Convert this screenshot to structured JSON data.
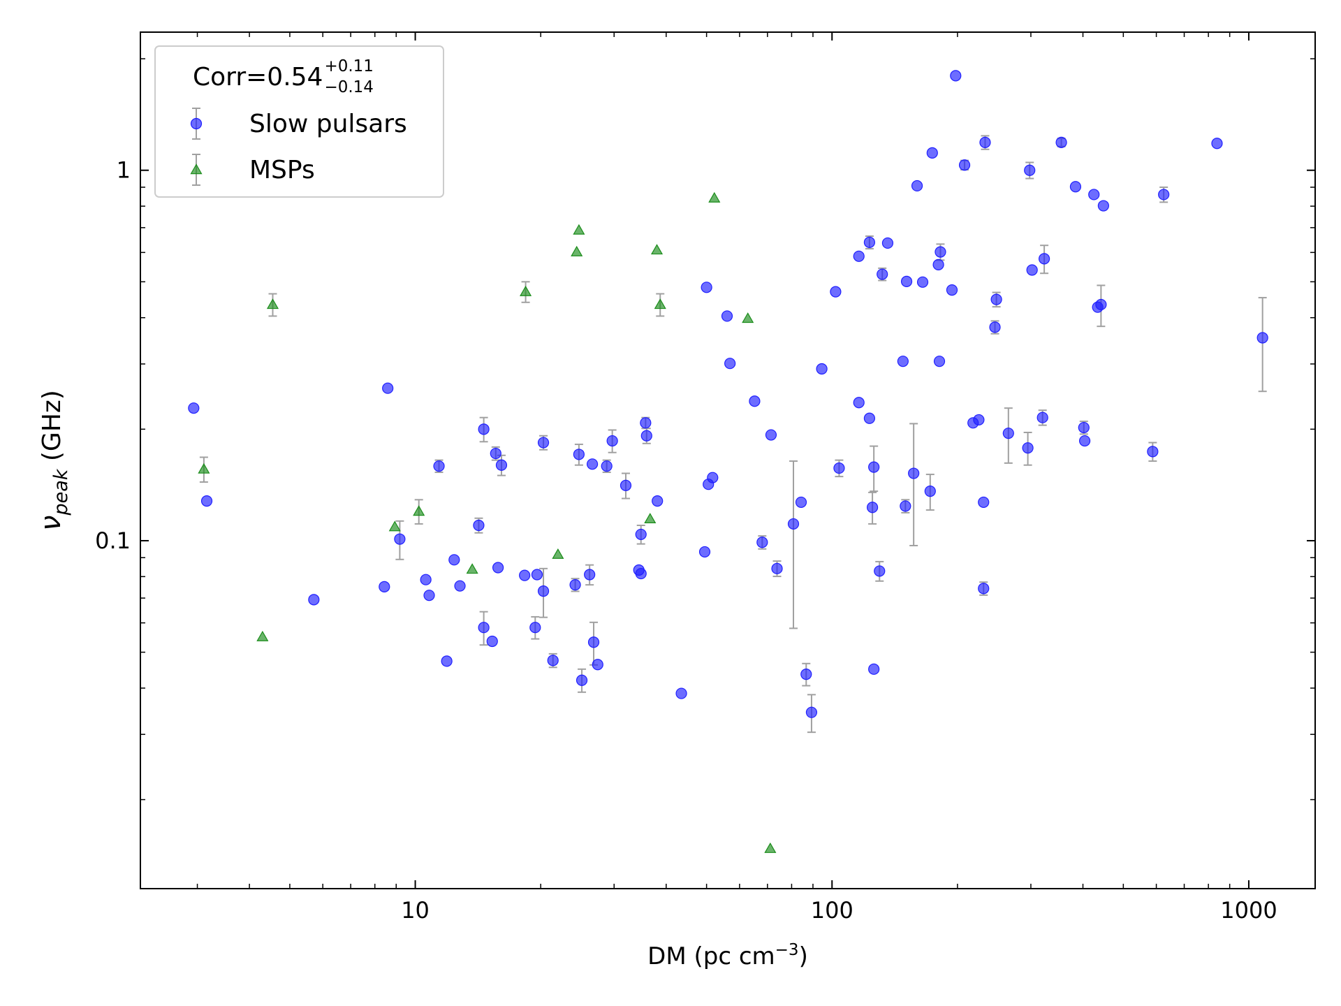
{
  "chart_data": {
    "type": "scatter",
    "legend_title": {
      "text": "Corr=0.54",
      "sup": "+0.11",
      "sub": "−0.14"
    },
    "x_label": {
      "text": "DM (pc cm",
      "sup": "−3",
      "end": ")"
    },
    "y_label": {
      "symbol": "ν",
      "sub": "peak",
      "unit": " (GHz)"
    },
    "xscale": "log",
    "yscale": "log",
    "xlim": [
      2.19,
      1443
    ],
    "ylim": [
      0.0115,
      2.36
    ],
    "xticks": [
      10,
      100,
      1000
    ],
    "yticks": [
      0.1,
      1
    ],
    "legend": "upper left",
    "series": [
      {
        "name": "Slow pulsars",
        "color": "#1f1fff",
        "marker": "circle",
        "x": [
          2.94,
          3.16,
          5.71,
          8.59,
          8.43,
          9.18,
          10.6,
          10.8,
          11.4,
          11.9,
          12.4,
          12.8,
          14.2,
          14.6,
          14.6,
          15.3,
          15.6,
          16.1,
          15.8,
          18.3,
          19.6,
          19.4,
          20.3,
          20.3,
          21.4,
          24.2,
          24.7,
          25.1,
          26.2,
          26.6,
          26.8,
          27.4,
          28.8,
          29.7,
          32.0,
          34.4,
          34.8,
          34.8,
          35.7,
          35.9,
          38.1,
          43.5,
          49.5,
          50.0,
          50.5,
          51.7,
          56.0,
          56.9,
          65.2,
          68.0,
          71.4,
          73.8,
          80.8,
          84.3,
          86.7,
          89.3,
          94.5,
          102,
          104,
          116,
          116,
          123,
          123,
          126,
          125,
          126,
          130,
          132,
          136,
          148,
          150,
          151,
          157,
          160,
          165,
          172,
          174,
          180,
          181,
          182,
          194,
          198,
          208,
          218,
          225,
          231,
          231,
          233,
          248,
          246,
          265,
          295,
          298,
          302,
          320,
          323,
          355,
          384,
          402,
          404,
          425,
          434,
          442,
          448,
          588,
          625,
          839,
          1079
        ],
        "values": [
          0.228,
          0.128,
          0.0693,
          0.258,
          0.0751,
          0.101,
          0.0785,
          0.0712,
          0.159,
          0.0473,
          0.0888,
          0.0755,
          0.11,
          0.2,
          0.0583,
          0.0535,
          0.172,
          0.16,
          0.0846,
          0.0806,
          0.081,
          0.0583,
          0.184,
          0.0731,
          0.0475,
          0.076,
          0.171,
          0.042,
          0.081,
          0.161,
          0.0532,
          0.0463,
          0.159,
          0.186,
          0.141,
          0.0833,
          0.0815,
          0.104,
          0.208,
          0.192,
          0.128,
          0.0387,
          0.0933,
          0.483,
          0.142,
          0.148,
          0.404,
          0.301,
          0.238,
          0.099,
          0.193,
          0.0841,
          0.111,
          0.127,
          0.0436,
          0.0344,
          0.291,
          0.47,
          0.157,
          0.586,
          0.236,
          0.639,
          0.214,
          0.158,
          0.123,
          0.045,
          0.0828,
          0.524,
          0.636,
          0.305,
          0.124,
          0.501,
          0.152,
          0.908,
          0.499,
          0.136,
          1.114,
          0.556,
          0.305,
          0.602,
          0.475,
          1.8,
          1.033,
          0.208,
          0.212,
          0.127,
          0.0743,
          1.189,
          0.448,
          0.377,
          0.195,
          0.178,
          1.0,
          0.538,
          0.215,
          0.577,
          1.189,
          0.903,
          0.202,
          0.186,
          0.86,
          0.427,
          0.434,
          0.802,
          0.174,
          0.86,
          1.182,
          0.353
        ],
        "errors": [
          null,
          null,
          null,
          null,
          null,
          0.012,
          null,
          null,
          0.006,
          null,
          null,
          null,
          0.005,
          0.015,
          0.006,
          null,
          0.007,
          0.01,
          null,
          null,
          null,
          0.004,
          0.008,
          0.011,
          0.002,
          0.003,
          0.011,
          0.003,
          0.005,
          null,
          0.007,
          null,
          0.006,
          0.013,
          0.011,
          null,
          null,
          0.006,
          0.007,
          0.009,
          null,
          null,
          null,
          null,
          null,
          null,
          null,
          null,
          null,
          0.004,
          null,
          0.004,
          0.053,
          null,
          0.003,
          0.004,
          null,
          null,
          0.008,
          null,
          null,
          0.025,
          null,
          0.022,
          0.012,
          null,
          0.005,
          0.02,
          null,
          null,
          0.005,
          null,
          0.055,
          null,
          null,
          0.015,
          null,
          null,
          null,
          0.03,
          null,
          null,
          0.03,
          null,
          null,
          null,
          0.003,
          0.05,
          0.02,
          0.015,
          0.033,
          0.018,
          0.05,
          null,
          0.01,
          0.05,
          0.03,
          null,
          0.008,
          null,
          null,
          null,
          0.055,
          null,
          0.01,
          0.04,
          null,
          0.1
        ]
      },
      {
        "name": "MSPs",
        "color": "#1a8c1a",
        "marker": "triangle",
        "x": [
          3.11,
          4.3,
          4.55,
          8.93,
          10.2,
          13.7,
          18.4,
          22.0,
          24.4,
          24.7,
          36.6,
          38.0,
          38.7,
          52.2,
          62.8,
          71.1
        ],
        "values": [
          0.156,
          0.055,
          0.434,
          0.109,
          0.12,
          0.0837,
          0.47,
          0.0918,
          0.602,
          0.689,
          0.1145,
          0.609,
          0.434,
          0.841,
          0.398,
          0.01475
        ],
        "errors": [
          0.012,
          null,
          0.03,
          null,
          0.009,
          null,
          0.03,
          null,
          null,
          null,
          null,
          null,
          0.03,
          null,
          null,
          null
        ]
      }
    ]
  }
}
